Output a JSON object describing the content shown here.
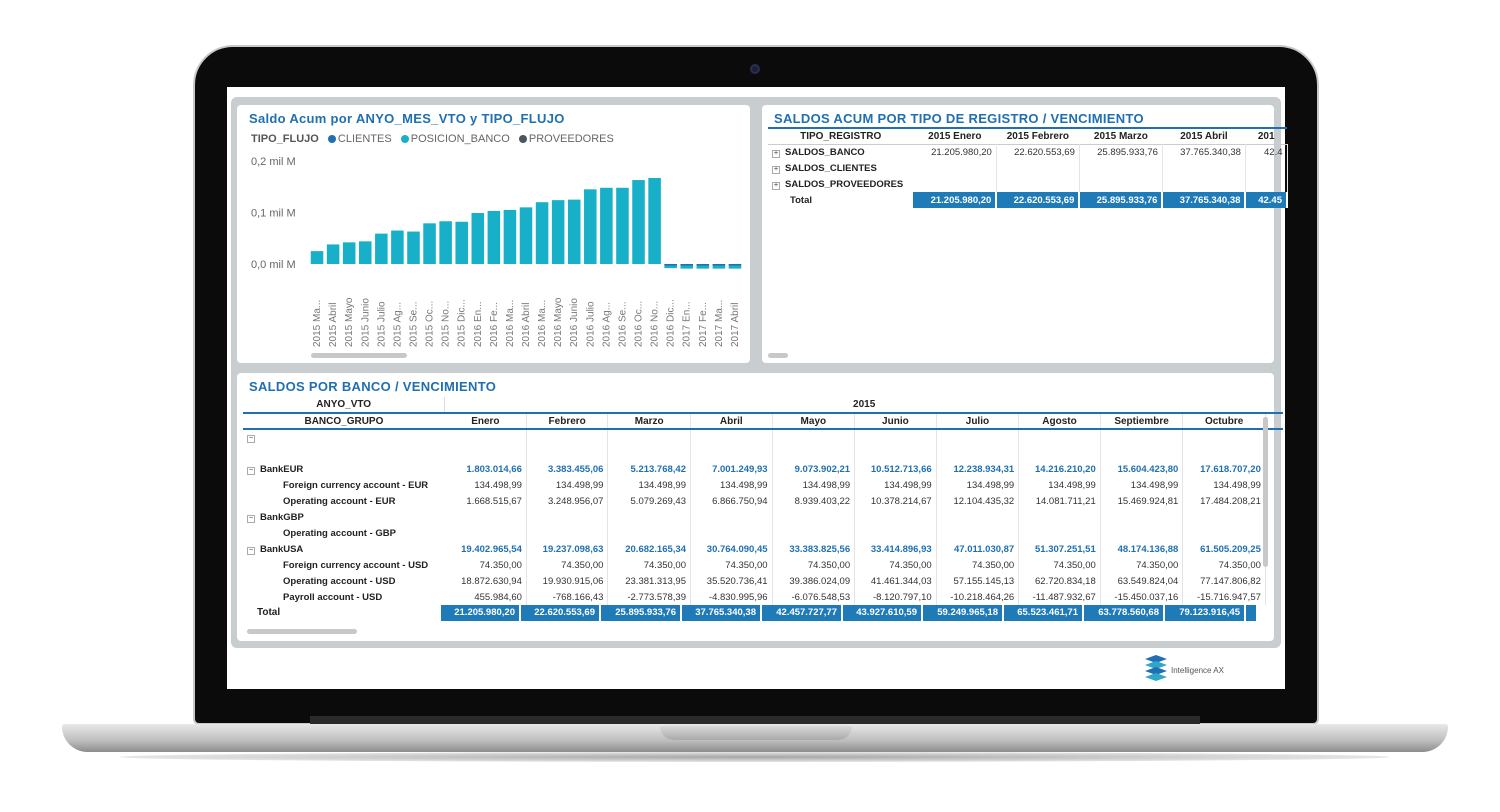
{
  "chart_panel": {
    "title": "Saldo Acum por ANYO_MES_VTO y TIPO_FLUJO",
    "legend_title": "TIPO_FLUJO",
    "legend": [
      {
        "name": "CLIENTES",
        "color": "#1f6fb2"
      },
      {
        "name": "POSICION_BANCO",
        "color": "#17b0c8"
      },
      {
        "name": "PROVEEDORES",
        "color": "#4a5560"
      }
    ]
  },
  "chart_data": {
    "type": "bar",
    "title": "Saldo Acum por ANYO_MES_VTO y TIPO_FLUJO",
    "xlabel": "",
    "ylabel": "",
    "ytick_labels": [
      "0,2 mil M",
      "0,1 mil M",
      "0,0 mil M"
    ],
    "ylim": [
      -0.01,
      0.2
    ],
    "categories": [
      "2015 Ma...",
      "2015 Abril",
      "2015 Mayo",
      "2015 Junio",
      "2015 Julio",
      "2015 Ag...",
      "2015 Se...",
      "2015 Oc...",
      "2015 No...",
      "2015 Dic...",
      "2016 En...",
      "2016 Fe...",
      "2016 Ma...",
      "2016 Abril",
      "2016 Ma...",
      "2016 Mayo",
      "2016 Junio",
      "2016 Julio",
      "2016 Ag...",
      "2016 Se...",
      "2016 Oc...",
      "2016 No...",
      "2016 Dic...",
      "2017 En...",
      "2017 Fe...",
      "2017 Ma...",
      "2017 Abril"
    ],
    "series": [
      {
        "name": "POSICION_BANCO",
        "values": [
          0.025,
          0.038,
          0.042,
          0.044,
          0.059,
          0.065,
          0.063,
          0.079,
          0.083,
          0.082,
          0.099,
          0.103,
          0.105,
          0.11,
          0.12,
          0.124,
          0.125,
          0.145,
          0.148,
          0.148,
          0.163,
          0.167,
          -0.008,
          -0.009,
          -0.009,
          -0.009,
          -0.009
        ]
      }
    ],
    "grid": false,
    "legend": "top-left"
  },
  "registro_panel": {
    "title": "SALDOS ACUM POR TIPO DE REGISTRO / VENCIMIENTO",
    "columns": [
      "TIPO_REGISTRO",
      "2015 Enero",
      "2015 Febrero",
      "2015 Marzo",
      "2015 Abril",
      "201"
    ],
    "rows": [
      {
        "label": "SALDOS_BANCO",
        "values": [
          "21.205.980,20",
          "22.620.553,69",
          "25.895.933,76",
          "37.765.340,38",
          "42.4"
        ]
      },
      {
        "label": "SALDOS_CLIENTES",
        "values": [
          "",
          "",
          "",
          "",
          ""
        ]
      },
      {
        "label": "SALDOS_PROVEEDORES",
        "values": [
          "",
          "",
          "",
          "",
          ""
        ]
      }
    ],
    "total": {
      "label": "Total",
      "values": [
        "21.205.980,20",
        "22.620.553,69",
        "25.895.933,76",
        "37.765.340,38",
        "42.45"
      ]
    }
  },
  "banco_panel": {
    "title": "SALDOS POR BANCO / VENCIMIENTO",
    "row_header_1": "ANYO_VTO",
    "row_header_2": "BANCO_GRUPO",
    "year": "2015",
    "months": [
      "Enero",
      "Febrero",
      "Marzo",
      "Abril",
      "Mayo",
      "Junio",
      "Julio",
      "Agosto",
      "Septiembre",
      "Octubre"
    ],
    "banks": [
      {
        "name": "BankEUR",
        "values": [
          "1.803.014,66",
          "3.383.455,06",
          "5.213.768,42",
          "7.001.249,93",
          "9.073.902,21",
          "10.512.713,66",
          "12.238.934,31",
          "14.216.210,20",
          "15.604.423,80",
          "17.618.707,20"
        ],
        "accounts": [
          {
            "name": "Foreign currency account - EUR",
            "values": [
              "134.498,99",
              "134.498,99",
              "134.498,99",
              "134.498,99",
              "134.498,99",
              "134.498,99",
              "134.498,99",
              "134.498,99",
              "134.498,99",
              "134.498,99"
            ]
          },
          {
            "name": "Operating account - EUR",
            "values": [
              "1.668.515,67",
              "3.248.956,07",
              "5.079.269,43",
              "6.866.750,94",
              "8.939.403,22",
              "10.378.214,67",
              "12.104.435,32",
              "14.081.711,21",
              "15.469.924,81",
              "17.484.208,21"
            ]
          }
        ]
      },
      {
        "name": "BankGBP",
        "values": [
          "",
          "",
          "",
          "",
          "",
          "",
          "",
          "",
          "",
          ""
        ],
        "accounts": [
          {
            "name": "Operating account - GBP",
            "values": [
              "",
              "",
              "",
              "",
              "",
              "",
              "",
              "",
              "",
              ""
            ]
          }
        ]
      },
      {
        "name": "BankUSA",
        "values": [
          "19.402.965,54",
          "19.237.098,63",
          "20.682.165,34",
          "30.764.090,45",
          "33.383.825,56",
          "33.414.896,93",
          "47.011.030,87",
          "51.307.251,51",
          "48.174.136,88",
          "61.505.209,25"
        ],
        "accounts": [
          {
            "name": "Foreign currency account - USD",
            "values": [
              "74.350,00",
              "74.350,00",
              "74.350,00",
              "74.350,00",
              "74.350,00",
              "74.350,00",
              "74.350,00",
              "74.350,00",
              "74.350,00",
              "74.350,00"
            ]
          },
          {
            "name": "Operating account - USD",
            "values": [
              "18.872.630,94",
              "19.930.915,06",
              "23.381.313,95",
              "35.520.736,41",
              "39.386.024,09",
              "41.461.344,03",
              "57.155.145,13",
              "62.720.834,18",
              "63.549.824,04",
              "77.147.806,82"
            ]
          },
          {
            "name": "Payroll account - USD",
            "values": [
              "455.984,60",
              "-768.166,43",
              "-2.773.578,39",
              "-4.830.995,96",
              "-6.076.548,53",
              "-8.120.797,10",
              "-10.218.464,26",
              "-11.487.932,67",
              "-15.450.037,16",
              "-15.716.947,57"
            ]
          }
        ]
      }
    ],
    "total": {
      "label": "Total",
      "values": [
        "21.205.980,20",
        "22.620.553,69",
        "25.895.933,76",
        "37.765.340,38",
        "42.457.727,77",
        "43.927.610,59",
        "59.249.965,18",
        "65.523.461,71",
        "63.778.560,68",
        "79.123.916,45"
      ]
    }
  },
  "brand": {
    "name": "Intelligence AX"
  }
}
